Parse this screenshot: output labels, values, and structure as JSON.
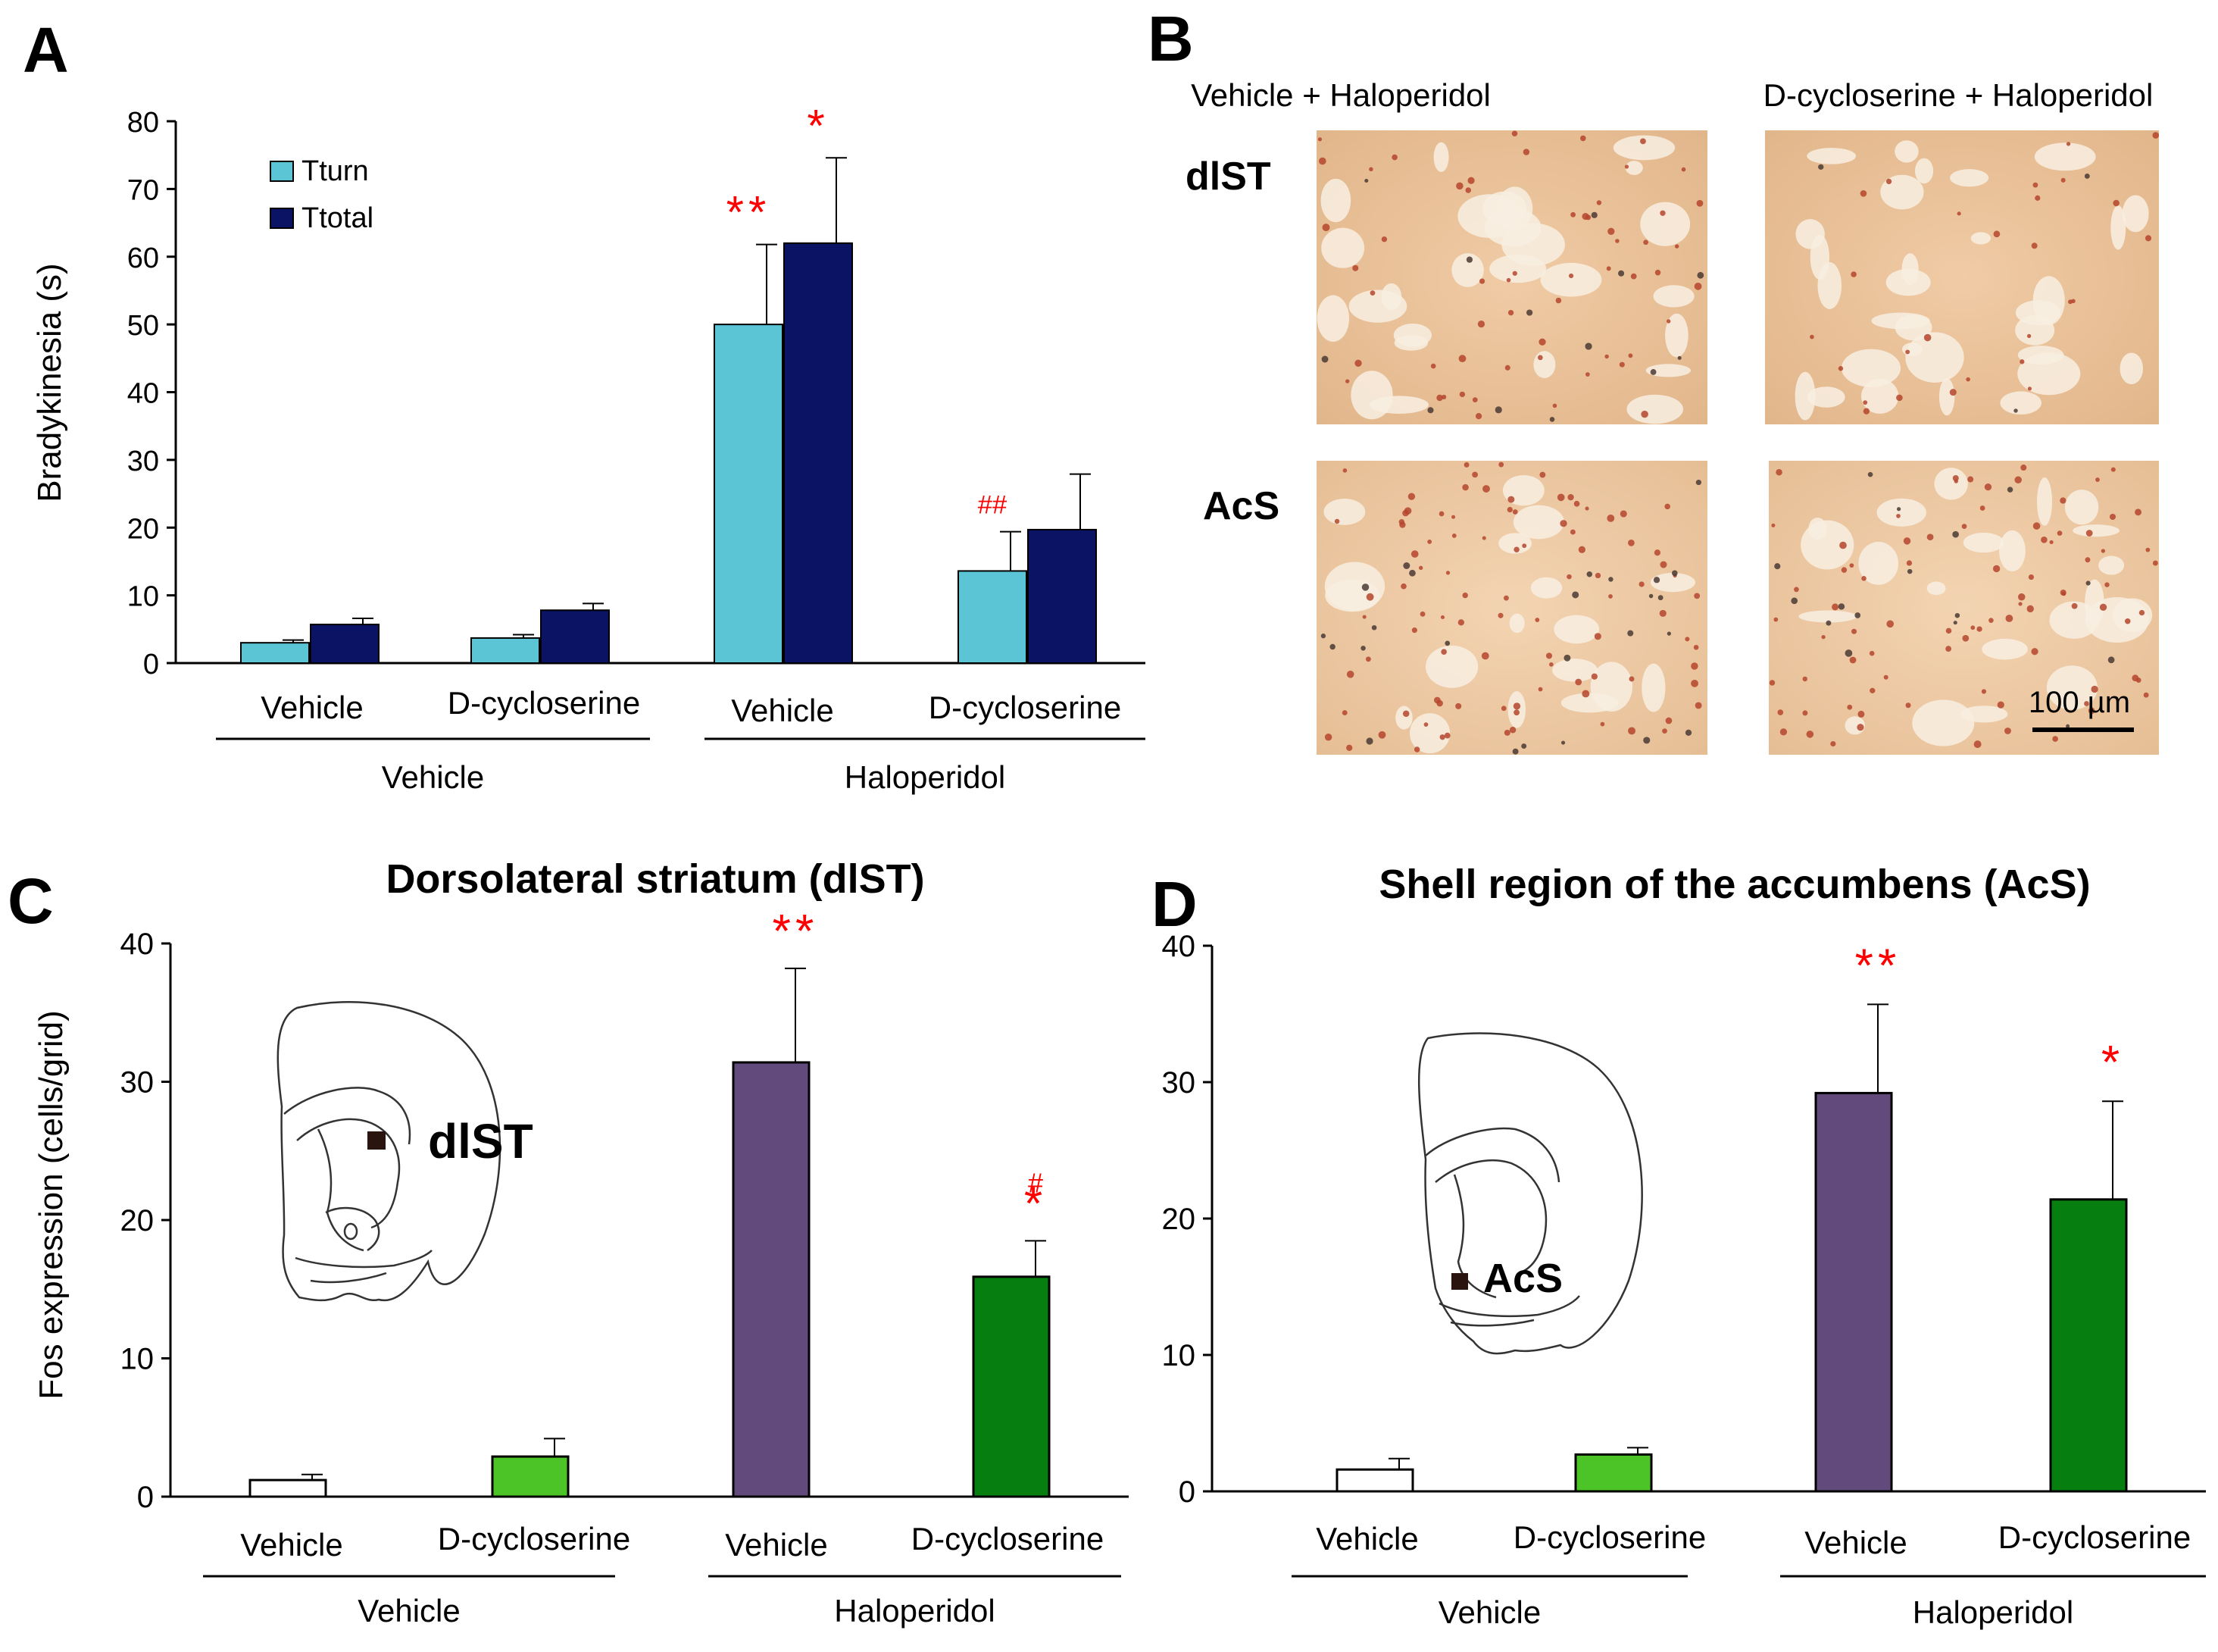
{
  "colors": {
    "tturn": "#5BC5D5",
    "ttotal": "#0B1464",
    "vehicle_bar": "#FFFFFF",
    "dcs_bar": "#4CC428",
    "hal_vehicle_bar": "#634A7C",
    "hal_dcs_bar": "#067F10",
    "sig": "#FF0000",
    "tissue_light": "#EBC39B",
    "tissue_dot": "#B5452D"
  },
  "panels": {
    "a": "A",
    "b": "B",
    "c": "C",
    "d": "D"
  },
  "micro": {
    "col_headers": [
      "Vehicle + Haloperidol",
      "D-cycloserine + Haloperidol"
    ],
    "row_labels": [
      "dlST",
      "AcS"
    ],
    "scale_bar": "100 µm"
  },
  "chart_data": [
    {
      "id": "A",
      "type": "bar",
      "title": "",
      "ylabel": "Bradykinesia (s)",
      "xlabel": "",
      "ylim": [
        0,
        80
      ],
      "yticks": [
        "0",
        "10",
        "20",
        "30",
        "40",
        "50",
        "60",
        "70",
        "80"
      ],
      "categories": [
        "Vehicle",
        "D-cycloserine",
        "Vehicle",
        "D-cycloserine"
      ],
      "groups": [
        "Vehicle",
        "Haloperidol"
      ],
      "legend": [
        "Tturn",
        "Ttotal"
      ],
      "legend_position": "top-left",
      "series": [
        {
          "name": "Tturn",
          "values": [
            3,
            3.7,
            50,
            13.6
          ],
          "errors": [
            0.4,
            0.5,
            11.8,
            5.8
          ],
          "marks": [
            "",
            "",
            "**",
            "##"
          ]
        },
        {
          "name": "Ttotal",
          "values": [
            5.7,
            7.8,
            62,
            19.7
          ],
          "errors": [
            0.9,
            1.0,
            12.6,
            8.2
          ],
          "marks": [
            "",
            "",
            "*",
            ""
          ]
        }
      ]
    },
    {
      "id": "C",
      "type": "bar",
      "title": "Dorsolateral striatum (dlST)",
      "ylabel": "Fos expression (cells/grid)",
      "xlabel": "",
      "ylim": [
        0,
        40
      ],
      "yticks": [
        "0",
        "10",
        "20",
        "30",
        "40"
      ],
      "categories": [
        "Vehicle",
        "D-cycloserine",
        "Vehicle",
        "D-cycloserine"
      ],
      "groups": [
        "Vehicle",
        "Haloperidol"
      ],
      "values": [
        1.2,
        2.9,
        31.4,
        15.9
      ],
      "errors": [
        0.4,
        1.3,
        6.8,
        2.6
      ],
      "marks": [
        "",
        "",
        "**",
        "#\n*"
      ],
      "inset_label": "dlST"
    },
    {
      "id": "D",
      "type": "bar",
      "title": "Shell region of the accumbens (AcS)",
      "ylabel": "",
      "xlabel": "",
      "ylim": [
        0,
        40
      ],
      "yticks": [
        "0",
        "10",
        "20",
        "30",
        "40"
      ],
      "categories": [
        "Vehicle",
        "D-cycloserine",
        "Vehicle",
        "D-cycloserine"
      ],
      "groups": [
        "Vehicle",
        "Haloperidol"
      ],
      "values": [
        1.6,
        2.7,
        29.2,
        21.4
      ],
      "errors": [
        0.8,
        0.5,
        6.5,
        7.2
      ],
      "marks": [
        "",
        "",
        "**",
        "*"
      ],
      "inset_label": "AcS"
    }
  ]
}
